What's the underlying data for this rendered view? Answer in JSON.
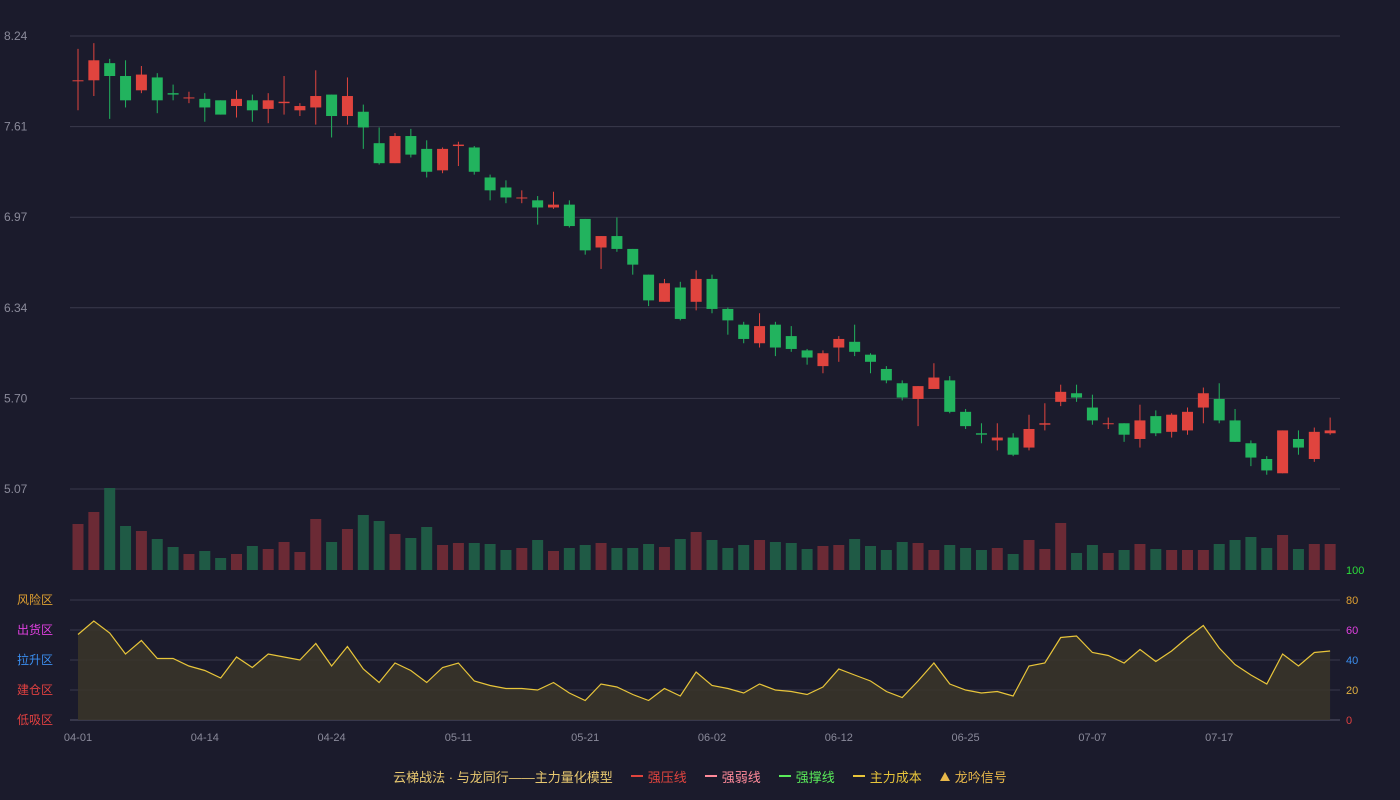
{
  "colors": {
    "background": "#1b1b2c",
    "grid": "#3a3a4c",
    "axis_text": "#8a8a9a",
    "up": "#e0443e",
    "down": "#22b35e",
    "vol_up": "#6b2a35",
    "vol_down": "#1f5a45",
    "indicator_line": "#e8c53a",
    "indicator_fill": "#3a3529"
  },
  "chart_data": {
    "type": "candlestick",
    "x_tick_labels": [
      "04-01",
      "04-14",
      "04-24",
      "05-11",
      "05-21",
      "06-02",
      "06-12",
      "06-25",
      "07-07",
      "07-17"
    ],
    "x_tick_indices": [
      0,
      8,
      16,
      24,
      32,
      40,
      48,
      56,
      64,
      72
    ],
    "price_axis": {
      "ylim": [
        5.07,
        8.24
      ],
      "ticks": [
        "8.24",
        "7.61",
        "6.97",
        "6.34",
        "5.70",
        "5.07"
      ]
    },
    "candles": [
      [
        7.93,
        7.93,
        8.15,
        7.72
      ],
      [
        7.93,
        8.07,
        8.19,
        7.82
      ],
      [
        8.05,
        7.96,
        8.08,
        7.66
      ],
      [
        7.96,
        7.79,
        8.07,
        7.74
      ],
      [
        7.86,
        7.97,
        8.03,
        7.84
      ],
      [
        7.95,
        7.79,
        7.98,
        7.7
      ],
      [
        7.84,
        7.83,
        7.9,
        7.79
      ],
      [
        7.81,
        7.81,
        7.85,
        7.77
      ],
      [
        7.8,
        7.74,
        7.84,
        7.64
      ],
      [
        7.79,
        7.69,
        7.79,
        7.69
      ],
      [
        7.75,
        7.8,
        7.86,
        7.67
      ],
      [
        7.79,
        7.72,
        7.83,
        7.64
      ],
      [
        7.73,
        7.79,
        7.84,
        7.63
      ],
      [
        7.77,
        7.78,
        7.96,
        7.69
      ],
      [
        7.72,
        7.75,
        7.77,
        7.68
      ],
      [
        7.74,
        7.82,
        8.0,
        7.62
      ],
      [
        7.83,
        7.68,
        7.83,
        7.53
      ],
      [
        7.68,
        7.82,
        7.95,
        7.62
      ],
      [
        7.71,
        7.6,
        7.76,
        7.45
      ],
      [
        7.49,
        7.35,
        7.6,
        7.34
      ],
      [
        7.35,
        7.54,
        7.56,
        7.35
      ],
      [
        7.54,
        7.41,
        7.59,
        7.39
      ],
      [
        7.45,
        7.29,
        7.51,
        7.25
      ],
      [
        7.3,
        7.45,
        7.46,
        7.28
      ],
      [
        7.47,
        7.48,
        7.5,
        7.33
      ],
      [
        7.46,
        7.29,
        7.47,
        7.27
      ],
      [
        7.25,
        7.16,
        7.27,
        7.09
      ],
      [
        7.18,
        7.11,
        7.23,
        7.07
      ],
      [
        7.11,
        7.11,
        7.16,
        7.07
      ],
      [
        7.09,
        7.04,
        7.12,
        6.92
      ],
      [
        7.04,
        7.06,
        7.15,
        7.03
      ],
      [
        7.06,
        6.91,
        7.09,
        6.9
      ],
      [
        6.96,
        6.74,
        6.96,
        6.71
      ],
      [
        6.76,
        6.84,
        6.84,
        6.61
      ],
      [
        6.84,
        6.75,
        6.97,
        6.73
      ],
      [
        6.75,
        6.64,
        6.75,
        6.57
      ],
      [
        6.57,
        6.39,
        6.57,
        6.35
      ],
      [
        6.38,
        6.51,
        6.54,
        6.38
      ],
      [
        6.48,
        6.26,
        6.52,
        6.25
      ],
      [
        6.38,
        6.54,
        6.6,
        6.32
      ],
      [
        6.54,
        6.33,
        6.57,
        6.3
      ],
      [
        6.33,
        6.25,
        6.34,
        6.15
      ],
      [
        6.22,
        6.12,
        6.24,
        6.09
      ],
      [
        6.09,
        6.21,
        6.3,
        6.06
      ],
      [
        6.22,
        6.06,
        6.24,
        6.0
      ],
      [
        6.14,
        6.05,
        6.21,
        6.03
      ],
      [
        6.04,
        5.99,
        6.05,
        5.94
      ],
      [
        5.93,
        6.02,
        6.04,
        5.88
      ],
      [
        6.06,
        6.12,
        6.14,
        5.96
      ],
      [
        6.1,
        6.03,
        6.22,
        6.0
      ],
      [
        6.01,
        5.96,
        6.02,
        5.88
      ],
      [
        5.91,
        5.83,
        5.93,
        5.81
      ],
      [
        5.81,
        5.71,
        5.83,
        5.69
      ],
      [
        5.7,
        5.79,
        5.79,
        5.51
      ],
      [
        5.77,
        5.85,
        5.95,
        5.78
      ],
      [
        5.83,
        5.61,
        5.86,
        5.6
      ],
      [
        5.61,
        5.51,
        5.63,
        5.49
      ],
      [
        5.46,
        5.45,
        5.53,
        5.39
      ],
      [
        5.41,
        5.43,
        5.53,
        5.34
      ],
      [
        5.43,
        5.31,
        5.46,
        5.3
      ],
      [
        5.36,
        5.49,
        5.59,
        5.34
      ],
      [
        5.52,
        5.53,
        5.67,
        5.48
      ],
      [
        5.68,
        5.75,
        5.8,
        5.65
      ],
      [
        5.74,
        5.71,
        5.8,
        5.68
      ],
      [
        5.64,
        5.55,
        5.73,
        5.52
      ],
      [
        5.53,
        5.53,
        5.57,
        5.49
      ],
      [
        5.53,
        5.45,
        5.53,
        5.4
      ],
      [
        5.42,
        5.55,
        5.66,
        5.36
      ],
      [
        5.58,
        5.46,
        5.62,
        5.44
      ],
      [
        5.47,
        5.59,
        5.6,
        5.43
      ],
      [
        5.48,
        5.61,
        5.64,
        5.45
      ],
      [
        5.64,
        5.74,
        5.78,
        5.53
      ],
      [
        5.7,
        5.55,
        5.81,
        5.53
      ],
      [
        5.55,
        5.4,
        5.63,
        5.4
      ],
      [
        5.39,
        5.29,
        5.41,
        5.23
      ],
      [
        5.28,
        5.2,
        5.3,
        5.17
      ],
      [
        5.18,
        5.48,
        5.48,
        5.18
      ],
      [
        5.42,
        5.36,
        5.48,
        5.31
      ],
      [
        5.28,
        5.47,
        5.5,
        5.26
      ],
      [
        5.46,
        5.48,
        5.57,
        5.45
      ]
    ],
    "volume": [
      46,
      58,
      82,
      44,
      39,
      31,
      23,
      16,
      19,
      12,
      16,
      24,
      21,
      28,
      18,
      51,
      28,
      41,
      55,
      49,
      36,
      32,
      43,
      25,
      27,
      27,
      26,
      20,
      22,
      30,
      19,
      22,
      25,
      27,
      22,
      22,
      26,
      23,
      31,
      38,
      30,
      22,
      25,
      30,
      28,
      27,
      21,
      24,
      25,
      31,
      24,
      20,
      28,
      27,
      20,
      25,
      22,
      20,
      22,
      16,
      30,
      21,
      47,
      17,
      25,
      17,
      20,
      26,
      21,
      20,
      20,
      20,
      26,
      30,
      33,
      22,
      35,
      21,
      26,
      26
    ],
    "indicator": {
      "ylim": [
        0,
        100
      ],
      "right_ticks": [
        "100",
        "80",
        "60",
        "40",
        "20",
        "0"
      ],
      "zone_labels": [
        "风险区",
        "出货区",
        "拉升区",
        "建仓区",
        "低吸区"
      ],
      "values": [
        57,
        66,
        58,
        44,
        53,
        41,
        41,
        36,
        33,
        28,
        42,
        35,
        44,
        42,
        40,
        51,
        36,
        49,
        34,
        25,
        38,
        33,
        25,
        35,
        38,
        26,
        23,
        21,
        21,
        20,
        25,
        18,
        13,
        24,
        22,
        17,
        13,
        21,
        16,
        32,
        23,
        21,
        18,
        24,
        20,
        19,
        17,
        22,
        34,
        30,
        26,
        19,
        15,
        26,
        38,
        24,
        20,
        18,
        19,
        16,
        36,
        38,
        55,
        56,
        45,
        43,
        38,
        47,
        39,
        46,
        55,
        63,
        48,
        37,
        30,
        24,
        44,
        36,
        45,
        46
      ],
      "right_tick_colors": [
        "#2bdc3a",
        "#e0a030",
        "#e040e0",
        "#3a8ef0",
        "#e0b040",
        "#e04040"
      ],
      "zone_colors": [
        "#e0a030",
        "#e040e0",
        "#3a8ef0",
        "#e04040",
        "#e04040"
      ]
    }
  },
  "legend": {
    "title": "云梯战法 · 与龙同行——主力量化模型",
    "title_color": "#e8c870",
    "items": [
      {
        "label": "强压线",
        "color": "#e0443e",
        "style": "solid",
        "icon": "line-icon"
      },
      {
        "label": "强弱线",
        "color": "#ff8a9a",
        "style": "dashed",
        "icon": "dashed-line-icon"
      },
      {
        "label": "强撑线",
        "color": "#5aeb5a",
        "style": "solid",
        "icon": "line-icon"
      },
      {
        "label": "主力成本",
        "color": "#e8c53a",
        "style": "dashed",
        "icon": "dashed-line-icon"
      },
      {
        "label": "龙吟信号",
        "color": "#e8b84a",
        "style": "triangle",
        "icon": "triangle-icon"
      }
    ]
  }
}
